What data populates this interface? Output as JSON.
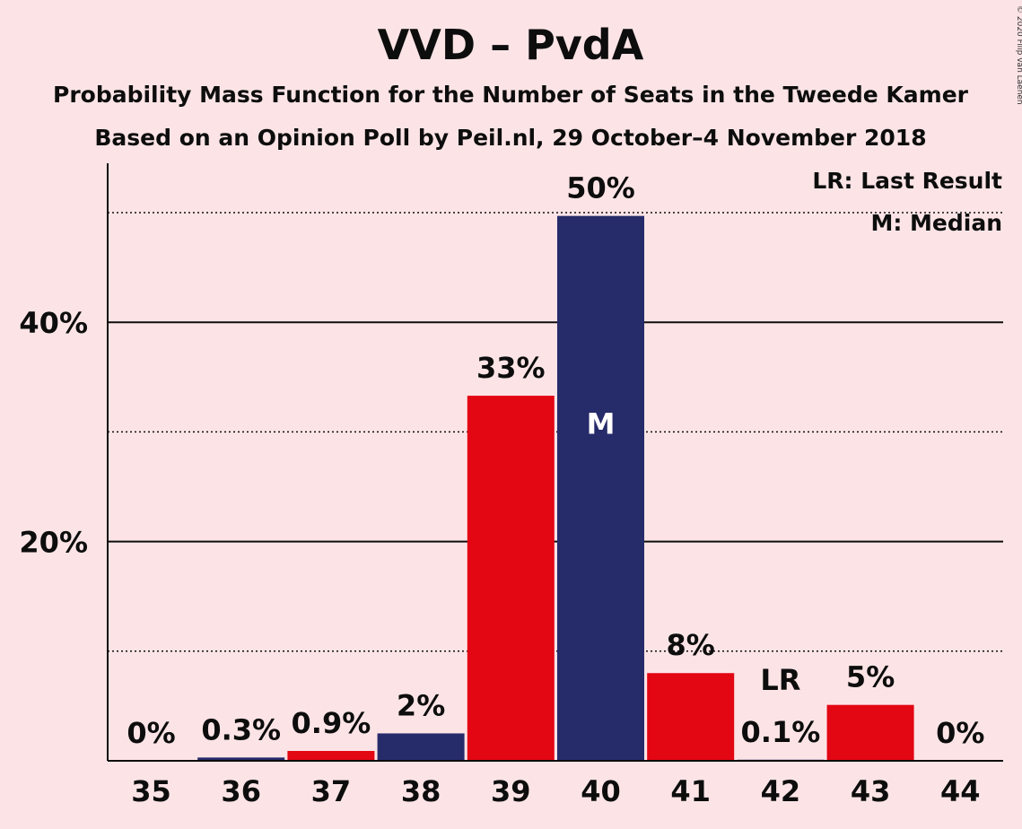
{
  "chart_data": {
    "type": "bar",
    "title": "VVD – PvdA",
    "subtitle_lines": [
      "Probability Mass Function for the Number of Seats in the Tweede Kamer",
      "Based on an Opinion Poll by Peil.nl, 29 October–4 November 2018"
    ],
    "categories": [
      "35",
      "36",
      "37",
      "38",
      "39",
      "40",
      "41",
      "42",
      "43",
      "44"
    ],
    "values": [
      0,
      0.3,
      0.9,
      2.5,
      33.3,
      49.7,
      8.0,
      0.1,
      5.1,
      0
    ],
    "value_labels": [
      "0%",
      "0.3%",
      "0.9%",
      "2%",
      "33%",
      "50%",
      "8%",
      "0.1%",
      "5%",
      "0%"
    ],
    "bar_colors": [
      "#e30613",
      "#262b6a",
      "#e30613",
      "#262b6a",
      "#e30613",
      "#262b6a",
      "#e30613",
      "#262b6a",
      "#e30613",
      "#262b6a"
    ],
    "y_ticks": [
      {
        "value": 20,
        "label": "20%"
      },
      {
        "value": 40,
        "label": "40%"
      }
    ],
    "minor_gridlines": [
      10,
      30,
      50
    ],
    "ylim": [
      0,
      54
    ],
    "markers": [
      {
        "category": "40",
        "text": "M",
        "position": "inside-bar"
      },
      {
        "category": "42",
        "text": "LR",
        "position": "above-label"
      }
    ],
    "legend": {
      "placement": "top-right",
      "entries": [
        "LR: Last Result",
        "M: Median"
      ]
    },
    "copyright": "© 2020 Filip van Laenen"
  }
}
